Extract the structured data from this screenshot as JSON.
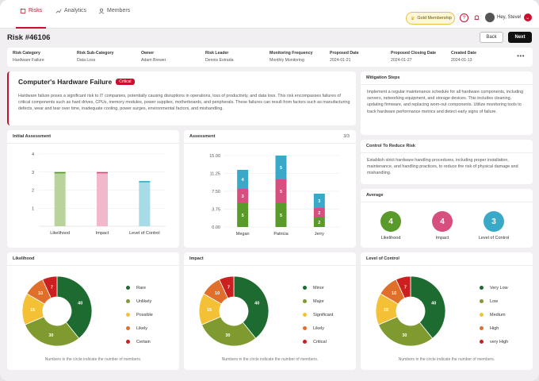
{
  "nav": {
    "tabs": [
      {
        "label": "Risks",
        "icon": "shield-icon"
      },
      {
        "label": "Analytics",
        "icon": "trend-icon"
      },
      {
        "label": "Members",
        "icon": "person-icon"
      }
    ],
    "membership": "Gold Membership",
    "greeting": "Hey, Steve!"
  },
  "page": {
    "title": "Risk #46106",
    "back_label": "Back",
    "next_label": "Next"
  },
  "meta": [
    {
      "label": "Risk Category",
      "value": "Hardware Failure"
    },
    {
      "label": "Risk Sub-Category",
      "value": "Data Loss"
    },
    {
      "label": "Owner",
      "value": "Adam Brewer"
    },
    {
      "label": "Risk Leader",
      "value": "Dennis Estrada"
    },
    {
      "label": "Monitoring Frequency",
      "value": "Monthly Monitoring"
    },
    {
      "label": "Proposed Date",
      "value": "2024-01-21"
    },
    {
      "label": "Proposed Closing Date",
      "value": "2024-01-27"
    },
    {
      "label": "Created Date",
      "value": "2024-01-13"
    }
  ],
  "risk": {
    "heading": "Computer's Hardware Failure",
    "badge": "Critical",
    "description": "Hardware failure poses a significant risk to IT companies, potentially causing disruptions in operations, loss of productivity, and data loss. This risk encompasses failures of critical components such as hard drives, CPUs, memory modules, power supplies, motherboards, and peripherals. These failures can result from factors such as manufacturing defects, wear and tear over time, inadequate cooling, power surges, environmental factors, and mishandling."
  },
  "mitigation": {
    "title": "Mitigation Steps",
    "text": "Implement a regular maintenance schedule for all hardware components, including servers, networking equipment, and storage devices. This includes cleaning, updating firmware, and replacing worn-out components. Utilize monitoring tools to track hardware performance metrics and detect early signs of failure."
  },
  "control": {
    "title": "Control To Reduce Risk",
    "text": "Establish strict hardware handling procedures, including proper installation, maintenance, and handling practices, to reduce the risk of physical damage and mishandling."
  },
  "average": {
    "title": "Average",
    "items": [
      {
        "label": "Likelihood",
        "value": "4",
        "color": "#5a9a2a"
      },
      {
        "label": "Impact",
        "value": "4",
        "color": "#d64f7f"
      },
      {
        "label": "Level of Control",
        "value": "3",
        "color": "#3aa9c8"
      }
    ]
  },
  "initial": {
    "title": "Initial Assessment"
  },
  "assessment": {
    "title": "Assessment",
    "page": "3/3"
  },
  "donuts": [
    {
      "title": "Likelihood",
      "note": "Numbers in the circle indicate the number of members."
    },
    {
      "title": "Impact",
      "note": "Numbers in the circle indicate the number of members."
    },
    {
      "title": "Level of Control",
      "note": "Numbers in the circle indicate the number of members."
    }
  ],
  "chart_data": [
    {
      "type": "bar",
      "title": "Initial Assessment",
      "categories": [
        "Likelihood",
        "Impact",
        "Level of Control"
      ],
      "values": [
        3,
        3,
        2.5
      ],
      "colors": [
        "#b9d39c",
        "#f2b7c9",
        "#a7dbe6"
      ],
      "cap_colors": [
        "#5a9a2a",
        "#d64f7f",
        "#3aa9c8"
      ],
      "ylim": [
        0,
        4
      ],
      "yticks": [
        1,
        2,
        3,
        4
      ]
    },
    {
      "type": "bar",
      "title": "Assessment",
      "stacked": true,
      "categories": [
        "Megan",
        "Patricia",
        "Jerry"
      ],
      "series": [
        {
          "values": [
            5,
            5,
            2
          ],
          "color": "#5a9a2a"
        },
        {
          "values": [
            3,
            5,
            2
          ],
          "color": "#d64f7f"
        },
        {
          "values": [
            4,
            5,
            3
          ],
          "color": "#3aa9c8"
        }
      ],
      "ylim": [
        0,
        15
      ],
      "yticks": [
        "0.00",
        "3.75",
        "7.50",
        "11.25",
        "15.00"
      ]
    },
    {
      "type": "pie",
      "title": "Likelihood",
      "labels": [
        "Rare",
        "Unlikely",
        "Possible",
        "Likely",
        "Certain"
      ],
      "values": [
        40,
        30,
        15,
        10,
        7
      ],
      "colors": [
        "#1e6b32",
        "#7f9a2e",
        "#f4c136",
        "#e06f2c",
        "#cc1f1f"
      ]
    },
    {
      "type": "pie",
      "title": "Impact",
      "labels": [
        "Minor",
        "Major",
        "Significant",
        "Likely",
        "Critical"
      ],
      "values": [
        40,
        30,
        15,
        10,
        7
      ],
      "colors": [
        "#1e6b32",
        "#7f9a2e",
        "#f4c136",
        "#e06f2c",
        "#cc1f1f"
      ]
    },
    {
      "type": "pie",
      "title": "Level of Control",
      "labels": [
        "Very Low",
        "Low",
        "Medium",
        "High",
        "very High"
      ],
      "values": [
        40,
        30,
        15,
        10,
        7
      ],
      "colors": [
        "#1e6b32",
        "#7f9a2e",
        "#f4c136",
        "#e06f2c",
        "#cc1f1f"
      ]
    }
  ]
}
